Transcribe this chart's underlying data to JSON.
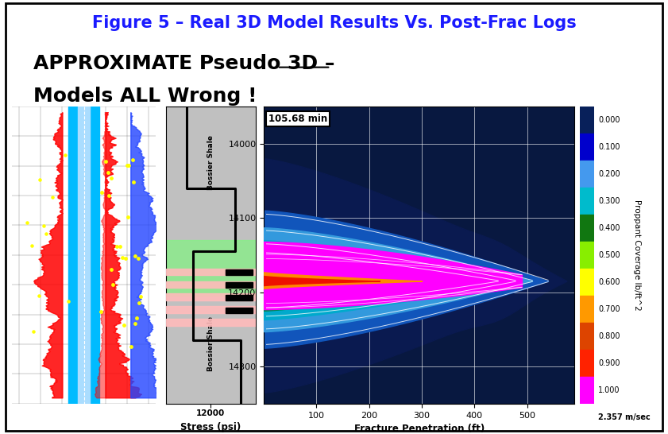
{
  "title": "Figure 5 – Real 3D Model Results Vs. Post-Frac Logs",
  "title_fontsize": 15,
  "title_color": "#1a1aff",
  "subtitle_line1": "APPROXIMATE Pseudo 3D –",
  "subtitle_line2": "Models ALL Wrong !",
  "subtitle_fontsize": 18,
  "subtitle_color": "#000000",
  "bg_color": "#ffffff",
  "time_label": "105.68 min",
  "colorbar_labels": [
    "0.000",
    "0.100",
    "0.200",
    "0.300",
    "0.400",
    "0.500",
    "0.600",
    "0.700",
    "0.800",
    "0.900",
    "1.000"
  ],
  "colorbar_last": "2.357 m/sec",
  "colorbar_title": "Proppant Coverage lb/ft^2",
  "x_label": "Fracture Penetration (ft)",
  "stress_label": "Stress (psi)",
  "depth_min": 13950,
  "depth_max": 14350,
  "frac_x_ticks": [
    100,
    200,
    300,
    400,
    500
  ],
  "depth_ticks": [
    14000,
    14100,
    14200,
    14300
  ],
  "colorbar_colors": [
    "#08205a",
    "#0000cc",
    "#4499ee",
    "#00bbcc",
    "#117711",
    "#88ee00",
    "#ffff00",
    "#ff9900",
    "#dd4400",
    "#ff2200",
    "#ff00ff"
  ],
  "log_bg": "#00dd00",
  "log_cyan": "#00ccff",
  "stress_bg": "#c0c0c0",
  "stress_green": "#88ee88",
  "stress_pink": "#ffbbbb",
  "frac_bg": "#081840"
}
